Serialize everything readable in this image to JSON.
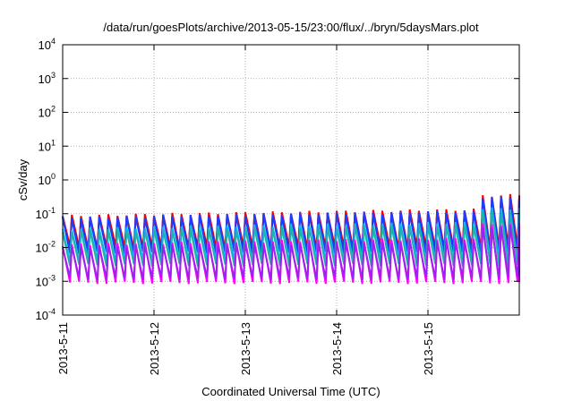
{
  "chart_data": {
    "type": "line",
    "title": "/data/run/goesPlots/archive/2013-05-15/23:00/flux/../bryn/5daysMars.plot",
    "xlabel": "Coordinated Universal Time (UTC)",
    "ylabel": "cSv/day",
    "yscale": "log",
    "ylim": [
      0.0001,
      10000
    ],
    "y_ticks": [
      {
        "base": "10",
        "exp": "-4",
        "value": 0.0001
      },
      {
        "base": "10",
        "exp": "-3",
        "value": 0.001
      },
      {
        "base": "10",
        "exp": "-2",
        "value": 0.01
      },
      {
        "base": "10",
        "exp": "-1",
        "value": 0.1
      },
      {
        "base": "10",
        "exp": "0",
        "value": 1
      },
      {
        "base": "10",
        "exp": "1",
        "value": 10
      },
      {
        "base": "10",
        "exp": "2",
        "value": 100
      },
      {
        "base": "10",
        "exp": "3",
        "value": 1000
      },
      {
        "base": "10",
        "exp": "4",
        "value": 10000
      }
    ],
    "xlim": [
      "2013-05-11 00:00",
      "2013-05-16 00:00"
    ],
    "x_ticks": [
      "2013-5-11",
      "2013-5-12",
      "2013-5-13",
      "2013-5-14",
      "2013-5-15"
    ],
    "grid": true,
    "legend": "none",
    "pattern": {
      "description": "sawtooth, about 10 spikes per day",
      "spikes_per_day": 10,
      "day5_amplitude_scale": 2.6
    },
    "series": [
      {
        "color": "#ff0000",
        "peak": 0.085,
        "trough": 0.01
      },
      {
        "color": "#8b1a1a",
        "peak": 0.07,
        "trough": 0.008
      },
      {
        "color": "#1e3cff",
        "peak": 0.075,
        "trough": 0.007
      },
      {
        "color": "#00bfff",
        "peak": 0.035,
        "trough": 0.004
      },
      {
        "color": "#20b2aa",
        "peak": 0.03,
        "trough": 0.003
      },
      {
        "color": "#ff00ff",
        "peak": 0.012,
        "trough": 0.0009
      },
      {
        "color": "#a020f0",
        "peak": 0.01,
        "trough": 0.0012
      }
    ]
  }
}
